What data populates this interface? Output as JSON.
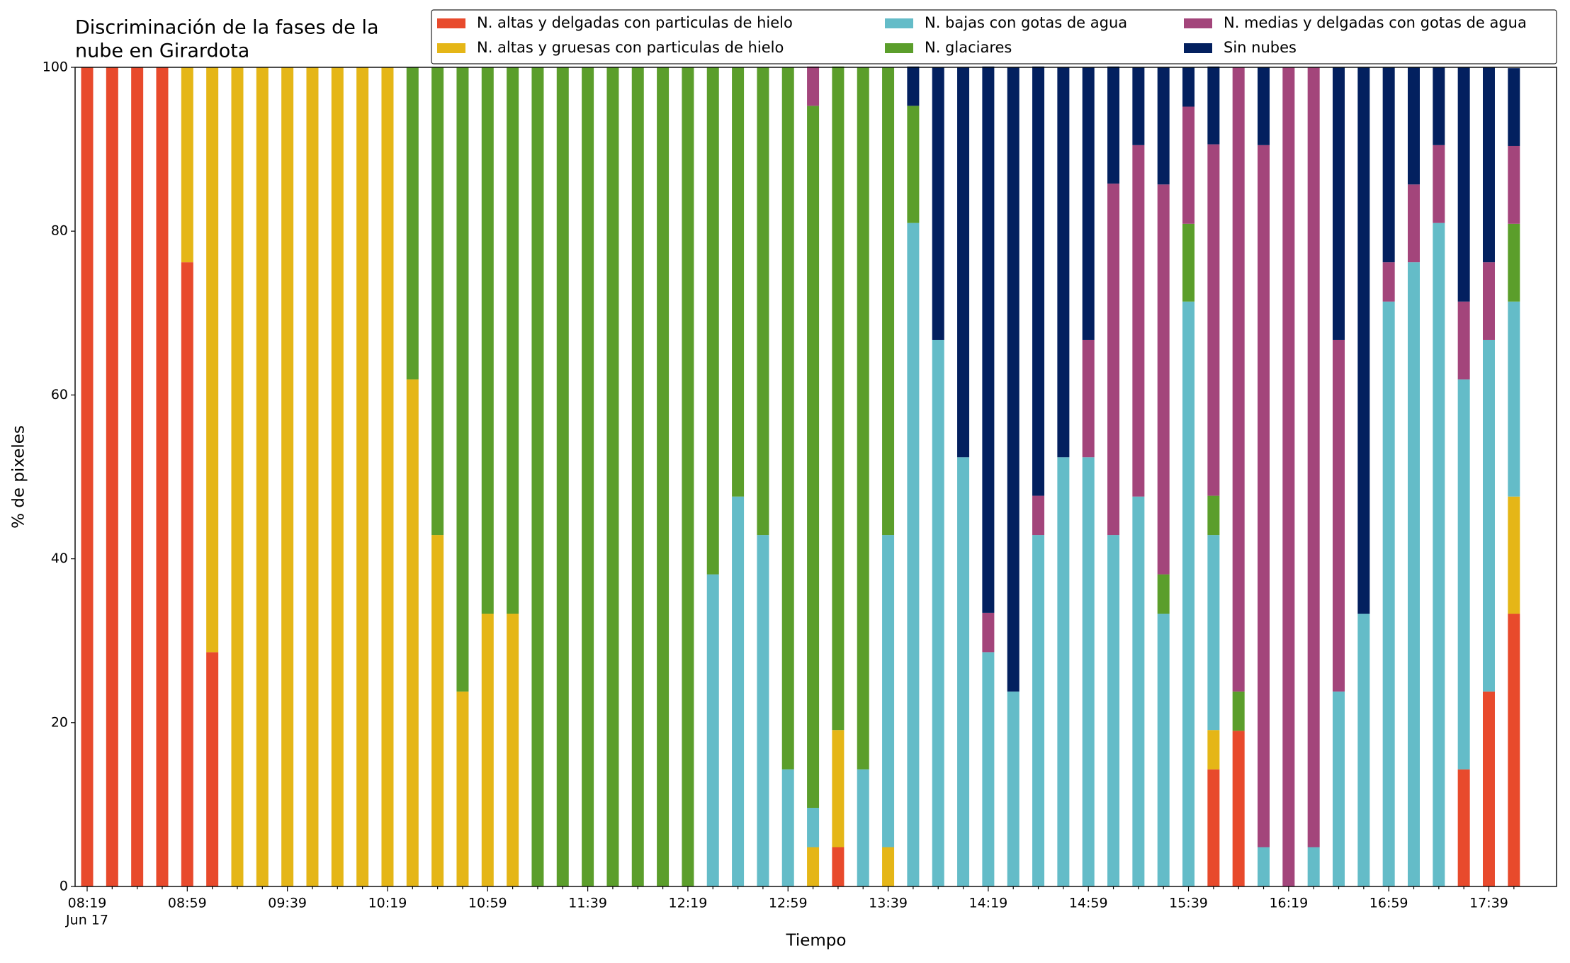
{
  "chart_data": {
    "type": "stacked_bar",
    "title": [
      "Discriminación de la fases de la",
      "nube en Girardota"
    ],
    "xlabel": "Tiempo",
    "ylabel": "% de pixeles",
    "x_date_label": "Jun 17",
    "categories": [
      "08:19",
      null,
      null,
      null,
      "08:59",
      null,
      null,
      null,
      "09:39",
      null,
      null,
      null,
      "10:19",
      null,
      null,
      null,
      "10:59",
      null,
      null,
      null,
      "11:39",
      null,
      null,
      null,
      "12:19",
      null,
      null,
      null,
      "12:59",
      null,
      null,
      null,
      "13:39",
      null,
      null,
      null,
      "14:19",
      null,
      null,
      null,
      "14:59",
      null,
      null,
      null,
      "15:39",
      null,
      null,
      null,
      "16:19",
      null,
      null,
      null,
      "16:59",
      null,
      null,
      null,
      "17:39",
      null
    ],
    "ylim": [
      0,
      100
    ],
    "yticks": [
      0,
      20,
      40,
      60,
      80,
      100
    ],
    "legend": "upper right",
    "series": [
      {
        "name": "N. altas y delgadas con particulas de hielo",
        "color": "#e84a2c",
        "values": [
          100,
          100,
          100,
          100,
          76.2,
          28.6,
          0,
          0,
          0,
          0,
          0,
          0,
          0,
          0,
          0,
          0,
          0,
          0,
          0,
          0,
          0,
          0,
          0,
          0,
          0,
          0,
          0,
          0,
          0,
          0,
          4.8,
          0,
          0,
          0,
          0,
          0,
          0,
          0,
          0,
          0,
          0,
          0,
          0,
          0,
          0,
          14.3,
          19.0,
          0,
          0,
          0,
          0,
          0,
          0,
          0,
          0,
          14.3,
          23.8,
          33.3
        ]
      },
      {
        "name": "N. altas y gruesas con particulas de hielo",
        "color": "#e5b617",
        "values": [
          0,
          0,
          0,
          0,
          23.8,
          71.4,
          100,
          100,
          100,
          100,
          100,
          100,
          100,
          61.9,
          42.9,
          23.8,
          33.3,
          33.3,
          0,
          0,
          0,
          0,
          0,
          0,
          0,
          0,
          0,
          0,
          0,
          4.8,
          14.3,
          0,
          4.8,
          0,
          0,
          0,
          0,
          0,
          0,
          0,
          0,
          0,
          0,
          0,
          0,
          4.8,
          0,
          0,
          0,
          0,
          0,
          0,
          0,
          0,
          0,
          0,
          0,
          14.3
        ]
      },
      {
        "name": "N. bajas con gotas de agua",
        "color": "#64bcc8",
        "values": [
          0,
          0,
          0,
          0,
          0,
          0,
          0,
          0,
          0,
          0,
          0,
          0,
          0,
          0,
          0,
          0,
          0,
          0,
          0,
          0,
          0,
          0,
          0,
          0,
          0,
          38.1,
          47.6,
          42.9,
          14.3,
          4.8,
          0,
          14.3,
          38.1,
          81.0,
          66.7,
          52.4,
          28.6,
          23.8,
          42.9,
          52.4,
          52.4,
          42.9,
          47.6,
          33.3,
          71.4,
          23.8,
          0,
          4.8,
          0,
          4.8,
          23.8,
          33.3,
          71.4,
          76.2,
          81.0,
          47.6,
          42.9,
          23.8
        ]
      },
      {
        "name": "N. glaciares",
        "color": "#5b9e2b",
        "values": [
          0,
          0,
          0,
          0,
          0,
          0,
          0,
          0,
          0,
          0,
          0,
          0,
          0,
          38.1,
          57.1,
          76.2,
          66.7,
          66.7,
          100,
          100,
          100,
          100,
          100,
          100,
          100,
          61.9,
          52.4,
          57.1,
          85.7,
          85.7,
          81.0,
          85.7,
          57.1,
          14.3,
          0,
          0,
          0,
          0,
          0,
          0,
          0,
          0,
          0,
          4.8,
          9.5,
          4.8,
          4.8,
          0,
          0,
          0,
          0,
          0,
          0,
          0,
          0,
          0,
          0,
          9.5
        ]
      },
      {
        "name": "N. medias y delgadas con gotas de agua",
        "color": "#a3457b",
        "values": [
          0,
          0,
          0,
          0,
          0,
          0,
          0,
          0,
          0,
          0,
          0,
          0,
          0,
          0,
          0,
          0,
          0,
          0,
          0,
          0,
          0,
          0,
          0,
          0,
          0,
          0,
          0,
          0,
          0,
          4.8,
          0,
          0,
          0,
          0,
          0,
          0,
          4.8,
          0,
          4.8,
          0,
          14.3,
          42.9,
          42.9,
          47.6,
          14.3,
          42.9,
          76.2,
          85.7,
          100,
          95.2,
          42.9,
          0,
          4.8,
          9.5,
          9.5,
          9.5,
          9.5,
          9.5
        ]
      },
      {
        "name": "Sin nubes",
        "color": "#03205f",
        "values": [
          0,
          0,
          0,
          0,
          0,
          0,
          0,
          0,
          0,
          0,
          0,
          0,
          0,
          0,
          0,
          0,
          0,
          0,
          0,
          0,
          0,
          0,
          0,
          0,
          0,
          0,
          0,
          0,
          0,
          0,
          0,
          0,
          0,
          4.8,
          33.3,
          47.6,
          66.7,
          76.2,
          52.4,
          47.6,
          33.3,
          14.3,
          9.5,
          14.3,
          4.8,
          9.5,
          0,
          9.5,
          0,
          0,
          33.3,
          66.7,
          23.8,
          14.3,
          9.5,
          28.6,
          23.8,
          9.5
        ]
      }
    ]
  }
}
